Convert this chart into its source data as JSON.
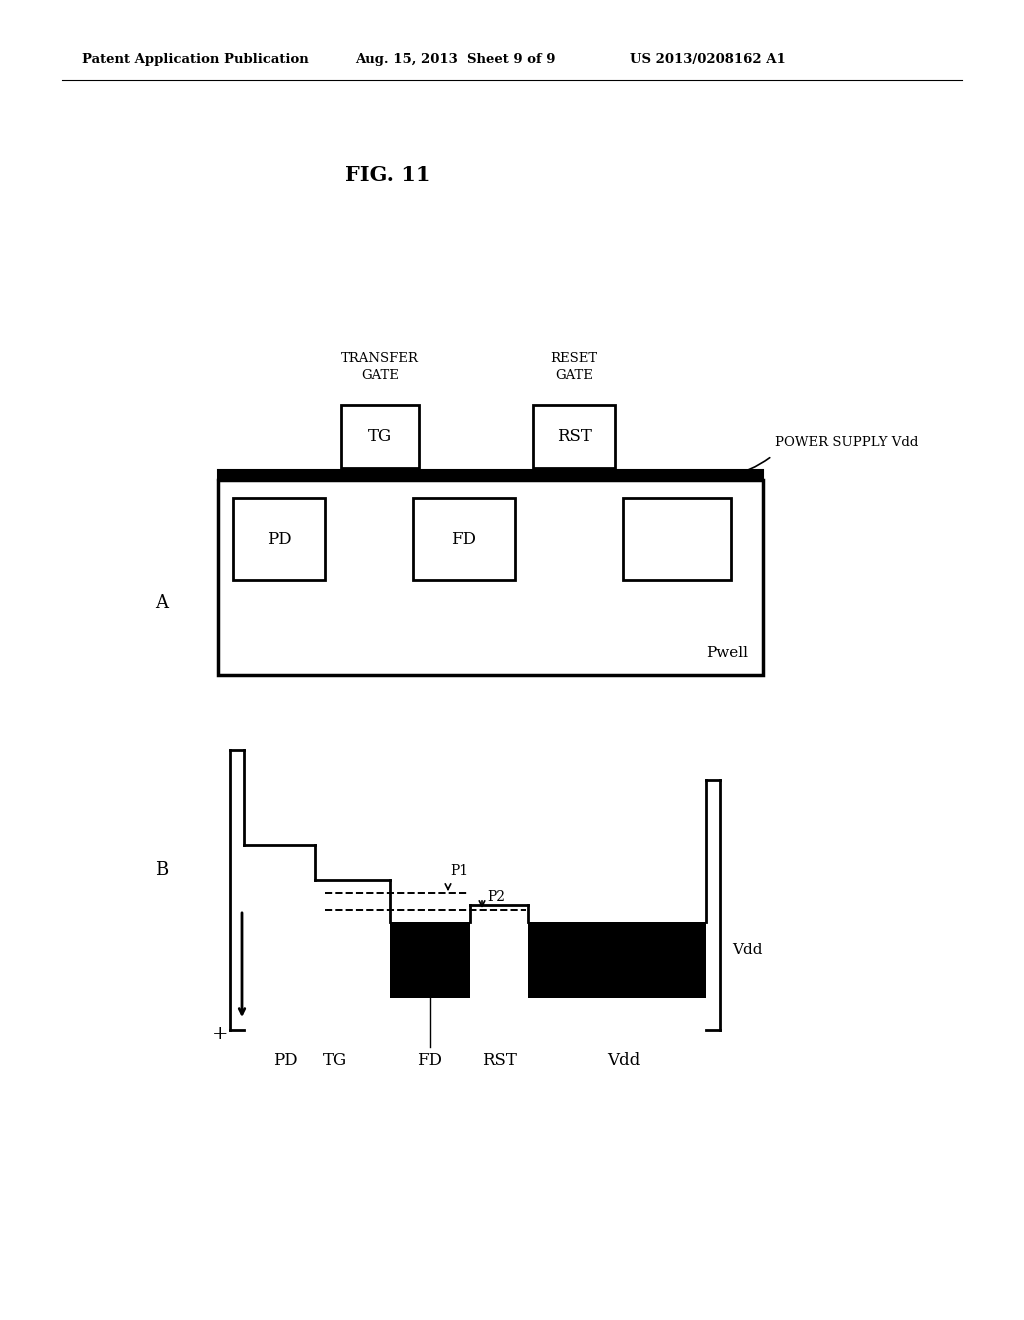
{
  "background_color": "#ffffff",
  "header_left": "Patent Application Publication",
  "header_center": "Aug. 15, 2013  Sheet 9 of 9",
  "header_right": "US 2013/0208162 A1",
  "fig_label": "FIG. 11",
  "diagram_A_label": "A",
  "diagram_B_label": "B",
  "pwell_label": "Pwell",
  "power_supply_label": "POWER SUPPLY Vdd",
  "transfer_gate_label": "TRANSFER\nGATE",
  "reset_gate_label": "RESET\nGATE",
  "tg_label": "TG",
  "rst_label": "RST",
  "pd_label": "PD",
  "fd_label": "FD",
  "x_labels": [
    "PD",
    "TG",
    "FD",
    "RST",
    "Vdd"
  ],
  "vdd_label": "Vdd",
  "plus_label": "+",
  "p1_label": "P1",
  "p2_label": "P2"
}
